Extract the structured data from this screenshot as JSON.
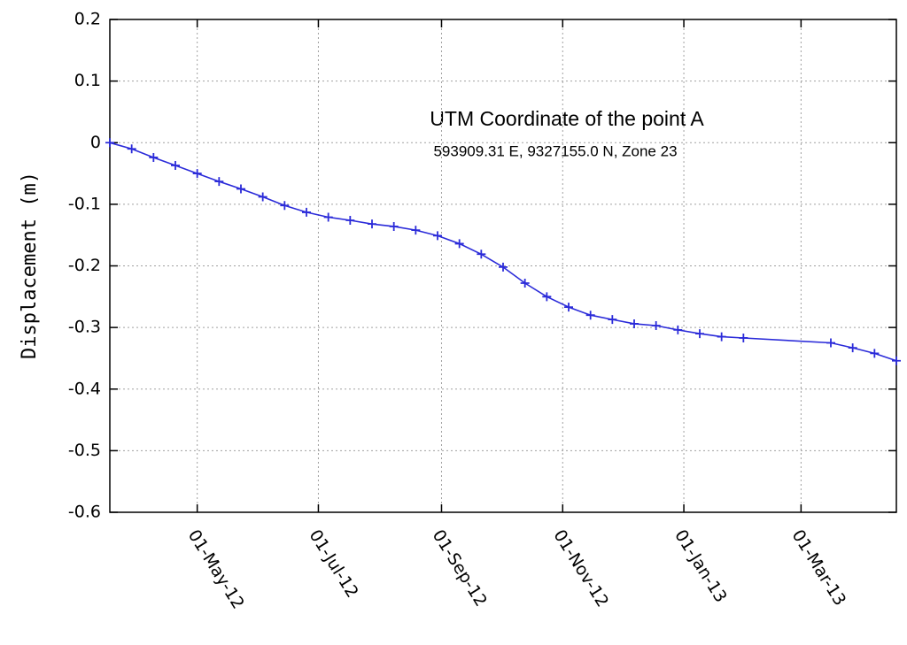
{
  "chart_data": {
    "type": "line",
    "y_label": "Displacement (m)",
    "annotations": [
      "UTM Coordinate of the point  A",
      "593909.31  E,   9327155.0  N,   Zone 23"
    ],
    "x": [
      "2012-03-18",
      "2012-03-29",
      "2012-04-09",
      "2012-04-20",
      "2012-05-01",
      "2012-05-12",
      "2012-05-23",
      "2012-06-03",
      "2012-06-14",
      "2012-06-25",
      "2012-07-06",
      "2012-07-17",
      "2012-07-28",
      "2012-08-08",
      "2012-08-19",
      "2012-08-30",
      "2012-09-10",
      "2012-09-21",
      "2012-10-02",
      "2012-10-13",
      "2012-10-24",
      "2012-11-04",
      "2012-11-15",
      "2012-11-26",
      "2012-12-07",
      "2012-12-18",
      "2012-12-29",
      "2013-01-09",
      "2013-01-20",
      "2013-01-31",
      "2013-03-16",
      "2013-03-27",
      "2013-04-07",
      "2013-04-18"
    ],
    "values": [
      0,
      -0.01,
      -0.024,
      -0.037,
      -0.05,
      -0.063,
      -0.075,
      -0.088,
      -0.102,
      -0.113,
      -0.121,
      -0.126,
      -0.132,
      -0.136,
      -0.142,
      -0.151,
      -0.164,
      -0.181,
      -0.202,
      -0.228,
      -0.25,
      -0.267,
      -0.28,
      -0.287,
      -0.294,
      -0.297,
      -0.304,
      -0.31,
      -0.315,
      -0.317,
      -0.325,
      -0.333,
      -0.342,
      -0.354
    ],
    "color": "#2b2bd9",
    "xlim": [
      "2012-03-18",
      "2013-04-18"
    ],
    "xticks": [
      {
        "value": "2012-05-01",
        "label": "01-May-12"
      },
      {
        "value": "2012-07-01",
        "label": "01-Jul-12"
      },
      {
        "value": "2012-09-01",
        "label": "01-Sep-12"
      },
      {
        "value": "2012-11-01",
        "label": "01-Nov-12"
      },
      {
        "value": "2013-01-01",
        "label": "01-Jan-13"
      },
      {
        "value": "2013-03-01",
        "label": "01-Mar-13"
      }
    ],
    "ylim": [
      -0.6,
      0.2
    ],
    "yticks": [
      0.2,
      0.1,
      0,
      -0.1,
      -0.2,
      -0.3,
      -0.4,
      -0.5,
      -0.6
    ],
    "grid": true
  }
}
